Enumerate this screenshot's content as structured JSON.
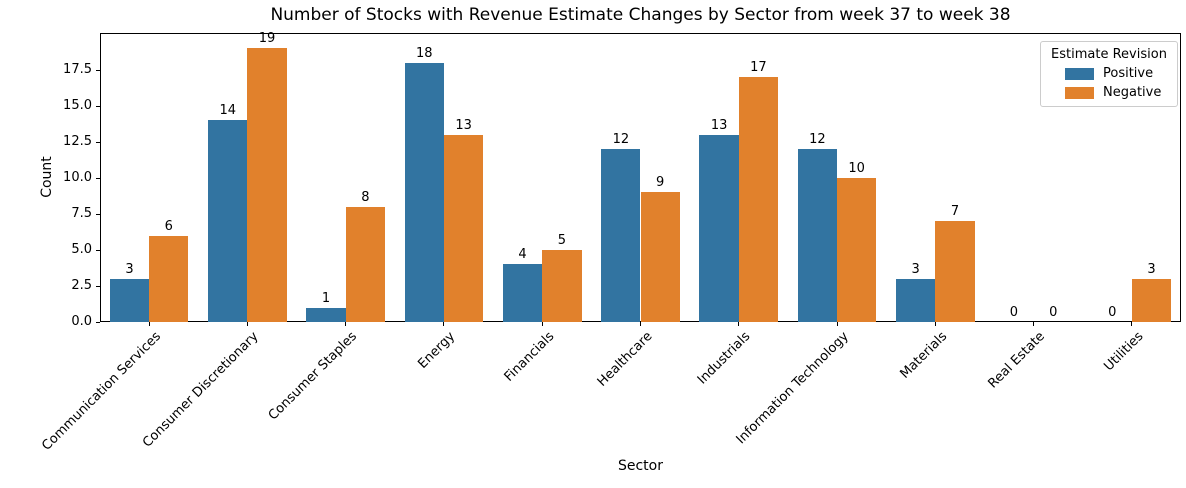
{
  "chart_data": {
    "type": "bar",
    "title": "Number of Stocks with Revenue Estimate Changes by Sector from week 37 to week 38",
    "xlabel": "Sector",
    "ylabel": "Count",
    "categories": [
      "Communication Services",
      "Consumer Discretionary",
      "Consumer Staples",
      "Energy",
      "Financials",
      "Healthcare",
      "Industrials",
      "Information Technology",
      "Materials",
      "Real Estate",
      "Utilities"
    ],
    "series": [
      {
        "name": "Positive",
        "color": "#3274a1",
        "values": [
          3,
          14,
          1,
          18,
          4,
          12,
          13,
          12,
          3,
          0,
          0
        ]
      },
      {
        "name": "Negative",
        "color": "#e1812c",
        "values": [
          6,
          19,
          8,
          13,
          5,
          9,
          17,
          10,
          7,
          0,
          3
        ]
      }
    ],
    "ylim": [
      0,
      20.07
    ],
    "yticks": [
      0,
      2.5,
      5,
      7.5,
      10,
      12.5,
      15,
      17.5
    ],
    "ytick_labels": [
      "0.0",
      "2.5",
      "5.0",
      "7.5",
      "10.0",
      "12.5",
      "15.0",
      "17.5"
    ],
    "grid": false,
    "bar_value_labels": true,
    "legend": {
      "title": "Estimate Revision",
      "position": "upper right",
      "entries": [
        "Positive",
        "Negative"
      ]
    }
  }
}
